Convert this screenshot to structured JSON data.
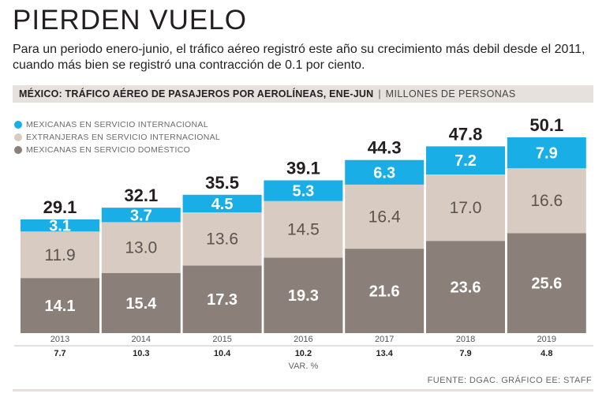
{
  "headline": "PIERDEN VUELO",
  "subtitle": {
    "line1": "Para un periodo enero-junio, el tráfico aéreo registró este año su crecimiento más debil desde el 2011,",
    "line2": "cuando más bien se registró una contracción de 0.1 por ciento."
  },
  "chart_header": {
    "title": "MÉXICO: TRÁFICO AÉREO DE PASAJEROS POR AEROLÍNEAS, ENE-JUN",
    "separator": "|",
    "unit": "MILLONES DE PERSONAS"
  },
  "colors": {
    "international": "#1aaee6",
    "foreign": "#d8ccc2",
    "domestic": "#8a8079",
    "header_bg": "#e6e1dc"
  },
  "source": "FUENTE: DGAC. GRÁFICO EE: STAFF",
  "chart_data": {
    "type": "bar",
    "stacked": true,
    "title": "MÉXICO: TRÁFICO AÉREO DE PASAJEROS POR AEROLÍNEAS, ENE-JUN",
    "unit": "MILLONES DE PERSONAS",
    "categories": [
      "2013",
      "2014",
      "2015",
      "2016",
      "2017",
      "2018",
      "2019"
    ],
    "series": [
      {
        "key": "domestic",
        "name": "MEXICANAS EN SERVICIO DOMÉSTICO",
        "values": [
          "14.1",
          "15.4",
          "17.3",
          "19.3",
          "21.6",
          "23.6",
          "25.6"
        ]
      },
      {
        "key": "foreign",
        "name": "EXTRANJERAS EN SERVICIO INTERNACIONAL",
        "values": [
          "11.9",
          "13.0",
          "13.6",
          "14.5",
          "16.4",
          "17.0",
          "16.6"
        ]
      },
      {
        "key": "international",
        "name": "MEXICANAS EN SERVICIO INTERNACIONAL",
        "values": [
          "3.1",
          "3.7",
          "4.5",
          "5.3",
          "6.3",
          "7.2",
          "7.9"
        ]
      }
    ],
    "totals": [
      "29.1",
      "32.1",
      "35.5",
      "39.1",
      "44.3",
      "47.8",
      "50.1"
    ],
    "legend_order": [
      "international",
      "foreign",
      "domestic"
    ],
    "variation": {
      "label": "VAR. %",
      "values": [
        "7.7",
        "10.3",
        "10.4",
        "10.2",
        "13.4",
        "7.9",
        "4.8"
      ]
    },
    "ylim": [
      0,
      50.1
    ]
  }
}
